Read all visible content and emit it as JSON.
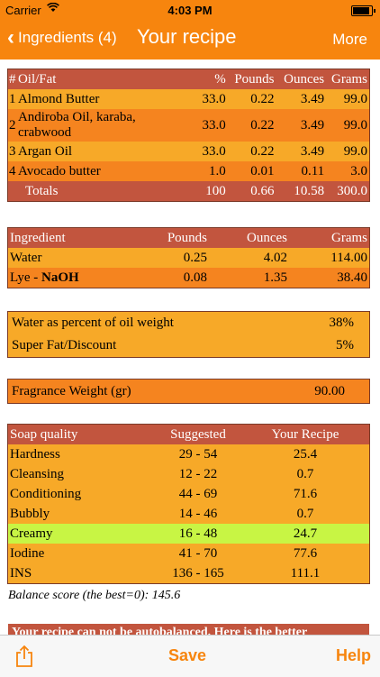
{
  "status_bar": {
    "carrier": "Carrier",
    "time": "4:03 PM"
  },
  "nav": {
    "back_label": "Ingredients (4)",
    "title": "Your recipe",
    "more_label": "More"
  },
  "oils_table": {
    "headers": [
      "#",
      "Oil/Fat",
      "%",
      "Pounds",
      "Ounces",
      "Grams"
    ],
    "rows": [
      {
        "num": "1",
        "name": "Almond Butter",
        "pct": "33.0",
        "lb": "0.22",
        "oz": "3.49",
        "g": "99.0"
      },
      {
        "num": "2",
        "name": "Andiroba Oil, karaba, crabwood",
        "pct": "33.0",
        "lb": "0.22",
        "oz": "3.49",
        "g": "99.0"
      },
      {
        "num": "3",
        "name": "Argan Oil",
        "pct": "33.0",
        "lb": "0.22",
        "oz": "3.49",
        "g": "99.0"
      },
      {
        "num": "4",
        "name": "Avocado butter",
        "pct": "1.0",
        "lb": "0.01",
        "oz": "0.11",
        "g": "3.0"
      }
    ],
    "totals": {
      "label": "Totals",
      "pct": "100",
      "lb": "0.66",
      "oz": "10.58",
      "g": "300.0"
    }
  },
  "lye_table": {
    "headers": [
      "Ingredient",
      "Pounds",
      "Ounces",
      "Grams"
    ],
    "water": {
      "name": "Water",
      "lb": "0.25",
      "oz": "4.02",
      "g": "114.00"
    },
    "lye": {
      "prefix": "Lye - ",
      "name": "NaOH",
      "lb": "0.08",
      "oz": "1.35",
      "g": "38.40"
    }
  },
  "water_table": {
    "water_percent_label": "Water as percent of oil weight",
    "water_percent_value": "38%",
    "superfat_label": "Super Fat/Discount",
    "superfat_value": "5%"
  },
  "fragrance": {
    "label": "Fragrance Weight (gr)",
    "value": "90.00"
  },
  "quality_table": {
    "headers": [
      "Soap quality",
      "Suggested",
      "Your Recipe"
    ],
    "rows": [
      {
        "name": "Hardness",
        "suggested": "29 - 54",
        "value": "25.4"
      },
      {
        "name": "Cleansing",
        "suggested": "12 - 22",
        "value": "0.7"
      },
      {
        "name": "Conditioning",
        "suggested": "44 - 69",
        "value": "71.6"
      },
      {
        "name": "Bubbly",
        "suggested": "14 - 46",
        "value": "0.7"
      },
      {
        "name": "Creamy",
        "suggested": "16 - 48",
        "value": "24.7"
      },
      {
        "name": "Iodine",
        "suggested": "41 - 70",
        "value": "77.6"
      },
      {
        "name": "INS",
        "suggested": "136 - 165",
        "value": "111.1"
      }
    ]
  },
  "balance_score": "Balance score (the best=0): 145.6",
  "warning_text": "Your recipe can not be autobalanced. Here is the better",
  "toolbar": {
    "share_icon": "share-icon",
    "save_label": "Save",
    "help_label": "Help"
  },
  "colors": {
    "accent": "#f7850e",
    "header": "#c2553e",
    "row_light": "#f7a928",
    "row_dark": "#f5841f",
    "highlight": "#c8f544"
  }
}
